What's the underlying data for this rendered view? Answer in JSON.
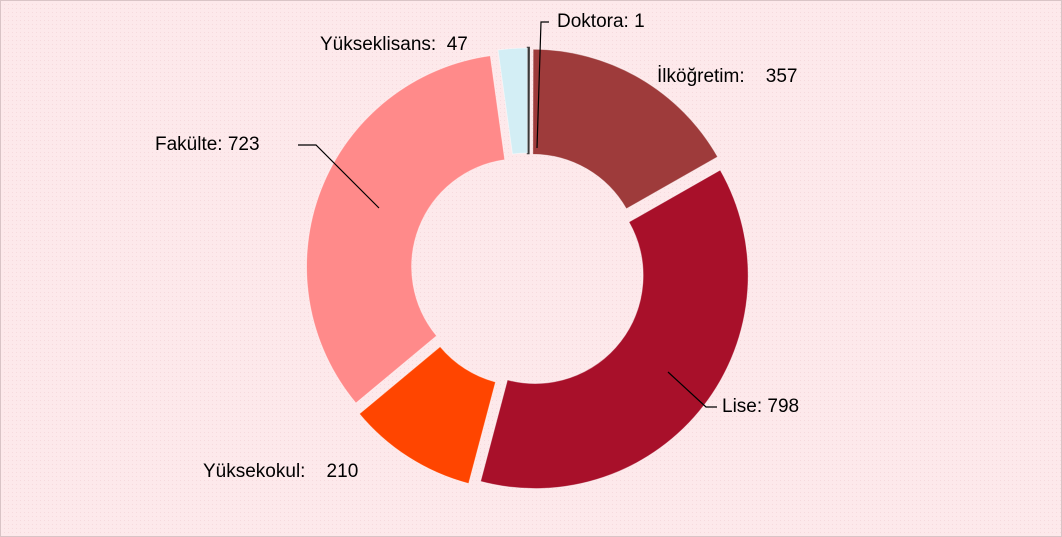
{
  "chart_data": {
    "type": "donut",
    "categories": [
      "Doktora",
      "İlköğretim",
      "Lise",
      "Yüksekokul",
      "Fakülte",
      "Yükseklisans"
    ],
    "values": [
      1,
      357,
      798,
      210,
      723,
      47
    ],
    "value_labels": [
      "Doktora: 1",
      "İlköğretim:    357",
      "Lise: 798",
      "Yüksekokul:    210",
      "Fakülte: 723",
      "Yükseklisans:  47"
    ],
    "colors": [
      "#3a3a3a",
      "#9e3b3b",
      "#a8102a",
      "#ff4500",
      "#ff8a8a",
      "#d3eef5"
    ]
  }
}
